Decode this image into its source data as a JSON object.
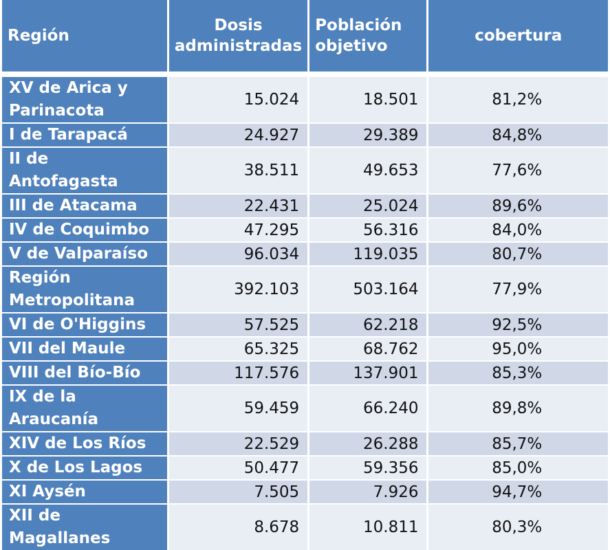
{
  "table": {
    "headers": {
      "region": "Región",
      "dosis": "Dosis administradas",
      "poblacion": "Población objetivo",
      "cobertura": "cobertura"
    },
    "rows": [
      {
        "region": "XV de Arica y Parinacota",
        "dosis": "15.024",
        "poblacion": "18.501",
        "cobertura": "81,2%"
      },
      {
        "region": "I de Tarapacá",
        "dosis": "24.927",
        "poblacion": "29.389",
        "cobertura": "84,8%"
      },
      {
        "region": "II de Antofagasta",
        "dosis": "38.511",
        "poblacion": "49.653",
        "cobertura": "77,6%"
      },
      {
        "region": "III de Atacama",
        "dosis": "22.431",
        "poblacion": "25.024",
        "cobertura": "89,6%"
      },
      {
        "region": "IV de Coquimbo",
        "dosis": "47.295",
        "poblacion": "56.316",
        "cobertura": "84,0%"
      },
      {
        "region": "V de Valparaíso",
        "dosis": "96.034",
        "poblacion": "119.035",
        "cobertura": "80,7%"
      },
      {
        "region": "Región Metropolitana",
        "dosis": "392.103",
        "poblacion": "503.164",
        "cobertura": "77,9%"
      },
      {
        "region": "VI de O'Higgins",
        "dosis": "57.525",
        "poblacion": "62.218",
        "cobertura": "92,5%"
      },
      {
        "region": "VII del Maule",
        "dosis": "65.325",
        "poblacion": "68.762",
        "cobertura": "95,0%"
      },
      {
        "region": "VIII del Bío-Bío",
        "dosis": "117.576",
        "poblacion": "137.901",
        "cobertura": "85,3%"
      },
      {
        "region": "IX de la Araucanía",
        "dosis": "59.459",
        "poblacion": "66.240",
        "cobertura": "89,8%"
      },
      {
        "region": "XIV de Los Ríos",
        "dosis": "22.529",
        "poblacion": "26.288",
        "cobertura": "85,7%"
      },
      {
        "region": "X de Los Lagos",
        "dosis": "50.477",
        "poblacion": "59.356",
        "cobertura": "85,0%"
      },
      {
        "region": "XI Aysén",
        "dosis": "7.505",
        "poblacion": "7.926",
        "cobertura": "94,7%"
      },
      {
        "region": "XII de Magallanes",
        "dosis": "8.678",
        "poblacion": "10.811",
        "cobertura": "80,3%"
      }
    ]
  },
  "colors": {
    "header_bg": "#4f81bd",
    "row_light": "#e9edf4",
    "row_dark": "#d0d8e8"
  }
}
